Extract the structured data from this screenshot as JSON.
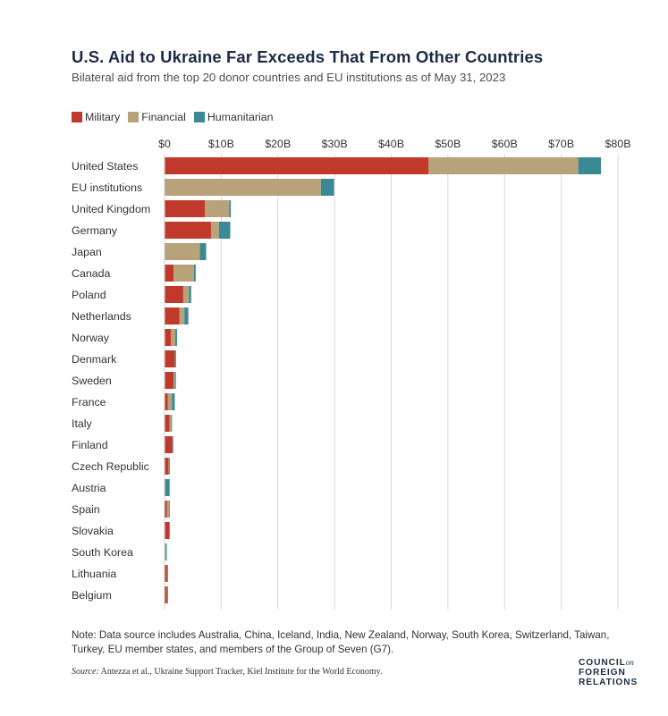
{
  "title": "U.S. Aid to Ukraine Far Exceeds That From Other Countries",
  "subtitle": "Bilateral aid from the top 20 donor countries and EU institutions as of May 31, 2023",
  "note": "Note: Data source includes Australia, China, Iceland, India, New Zealand, Norway, South Korea, Switzerland, Taiwan, Turkey, EU member states, and members of the Group of Seven (G7).",
  "source": {
    "label": "Source:",
    "text": " Antezza et al., Ukraine Support Tracker, Kiel Institute for the World Economy."
  },
  "logo": {
    "line1": "COUNCIL",
    "on": "on",
    "line2": "FOREIGN",
    "line3": "RELATIONS"
  },
  "colors": {
    "military": "#c0392b",
    "financial": "#b7a27a",
    "humanitarian": "#3a8a93",
    "grid": "#d9d9d9"
  },
  "chart_data": {
    "type": "bar",
    "orientation": "horizontal",
    "stacked": true,
    "title": "U.S. Aid to Ukraine Far Exceeds That From Other Countries",
    "subtitle": "Bilateral aid from the top 20 donor countries and EU institutions as of May 31, 2023",
    "legend": [
      "Military",
      "Financial",
      "Humanitarian"
    ],
    "legend_position": "top-left",
    "x_ticks": [
      "$0",
      "$10B",
      "$20B",
      "$30B",
      "$40B",
      "$50B",
      "$60B",
      "$70B",
      "$80B"
    ],
    "xlim": [
      0,
      80
    ],
    "units": "billions USD",
    "grid": true,
    "categories": [
      "United States",
      "EU institutions",
      "United Kingdom",
      "Germany",
      "Japan",
      "Canada",
      "Poland",
      "Netherlands",
      "Norway",
      "Denmark",
      "Sweden",
      "France",
      "Italy",
      "Finland",
      "Czech Republic",
      "Austria",
      "Spain",
      "Slovakia",
      "South Korea",
      "Lithuania",
      "Belgium"
    ],
    "series": [
      {
        "name": "Military",
        "color": "#c0392b",
        "values": [
          46.6,
          0,
          7.1,
          8.2,
          0.04,
          1.6,
          3.3,
          2.6,
          1.1,
          1.8,
          1.6,
          0.6,
          0.9,
          1.4,
          0.7,
          0,
          0.4,
          0.8,
          0,
          0.4,
          0.4
        ]
      },
      {
        "name": "Financial",
        "color": "#b7a27a",
        "values": [
          26.4,
          27.6,
          4.3,
          1.4,
          6.2,
          3.6,
          1.0,
          0.9,
          0.8,
          0.03,
          0.2,
          0.7,
          0.3,
          0,
          0.1,
          0.1,
          0.4,
          0,
          0.2,
          0.1,
          0.1
        ]
      },
      {
        "name": "Humanitarian",
        "color": "#3a8a93",
        "values": [
          4.0,
          2.3,
          0.3,
          2.0,
          1.1,
          0.3,
          0.4,
          0.7,
          0.3,
          0.2,
          0.2,
          0.5,
          0.1,
          0.1,
          0.1,
          0.8,
          0.1,
          0.1,
          0.2,
          0.1,
          0.1
        ]
      }
    ]
  }
}
